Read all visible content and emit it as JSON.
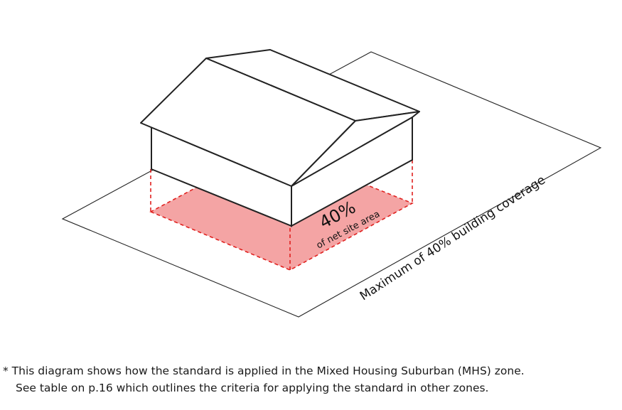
{
  "diagram": {
    "coverage_percent_text": "40%",
    "coverage_subtext": "of net site area",
    "site_caption": "Maximum of 40% building coverage",
    "colors": {
      "outline": "#222222",
      "coverage_fill": "#f4a4a4",
      "dashed_line": "#e0211f",
      "background": "#ffffff"
    }
  },
  "footnote": {
    "line1": "* This diagram shows how the standard is applied in the Mixed Housing Suburban (MHS) zone.",
    "line2": "See table on p.16 which outlines the criteria for applying the standard in other zones."
  }
}
